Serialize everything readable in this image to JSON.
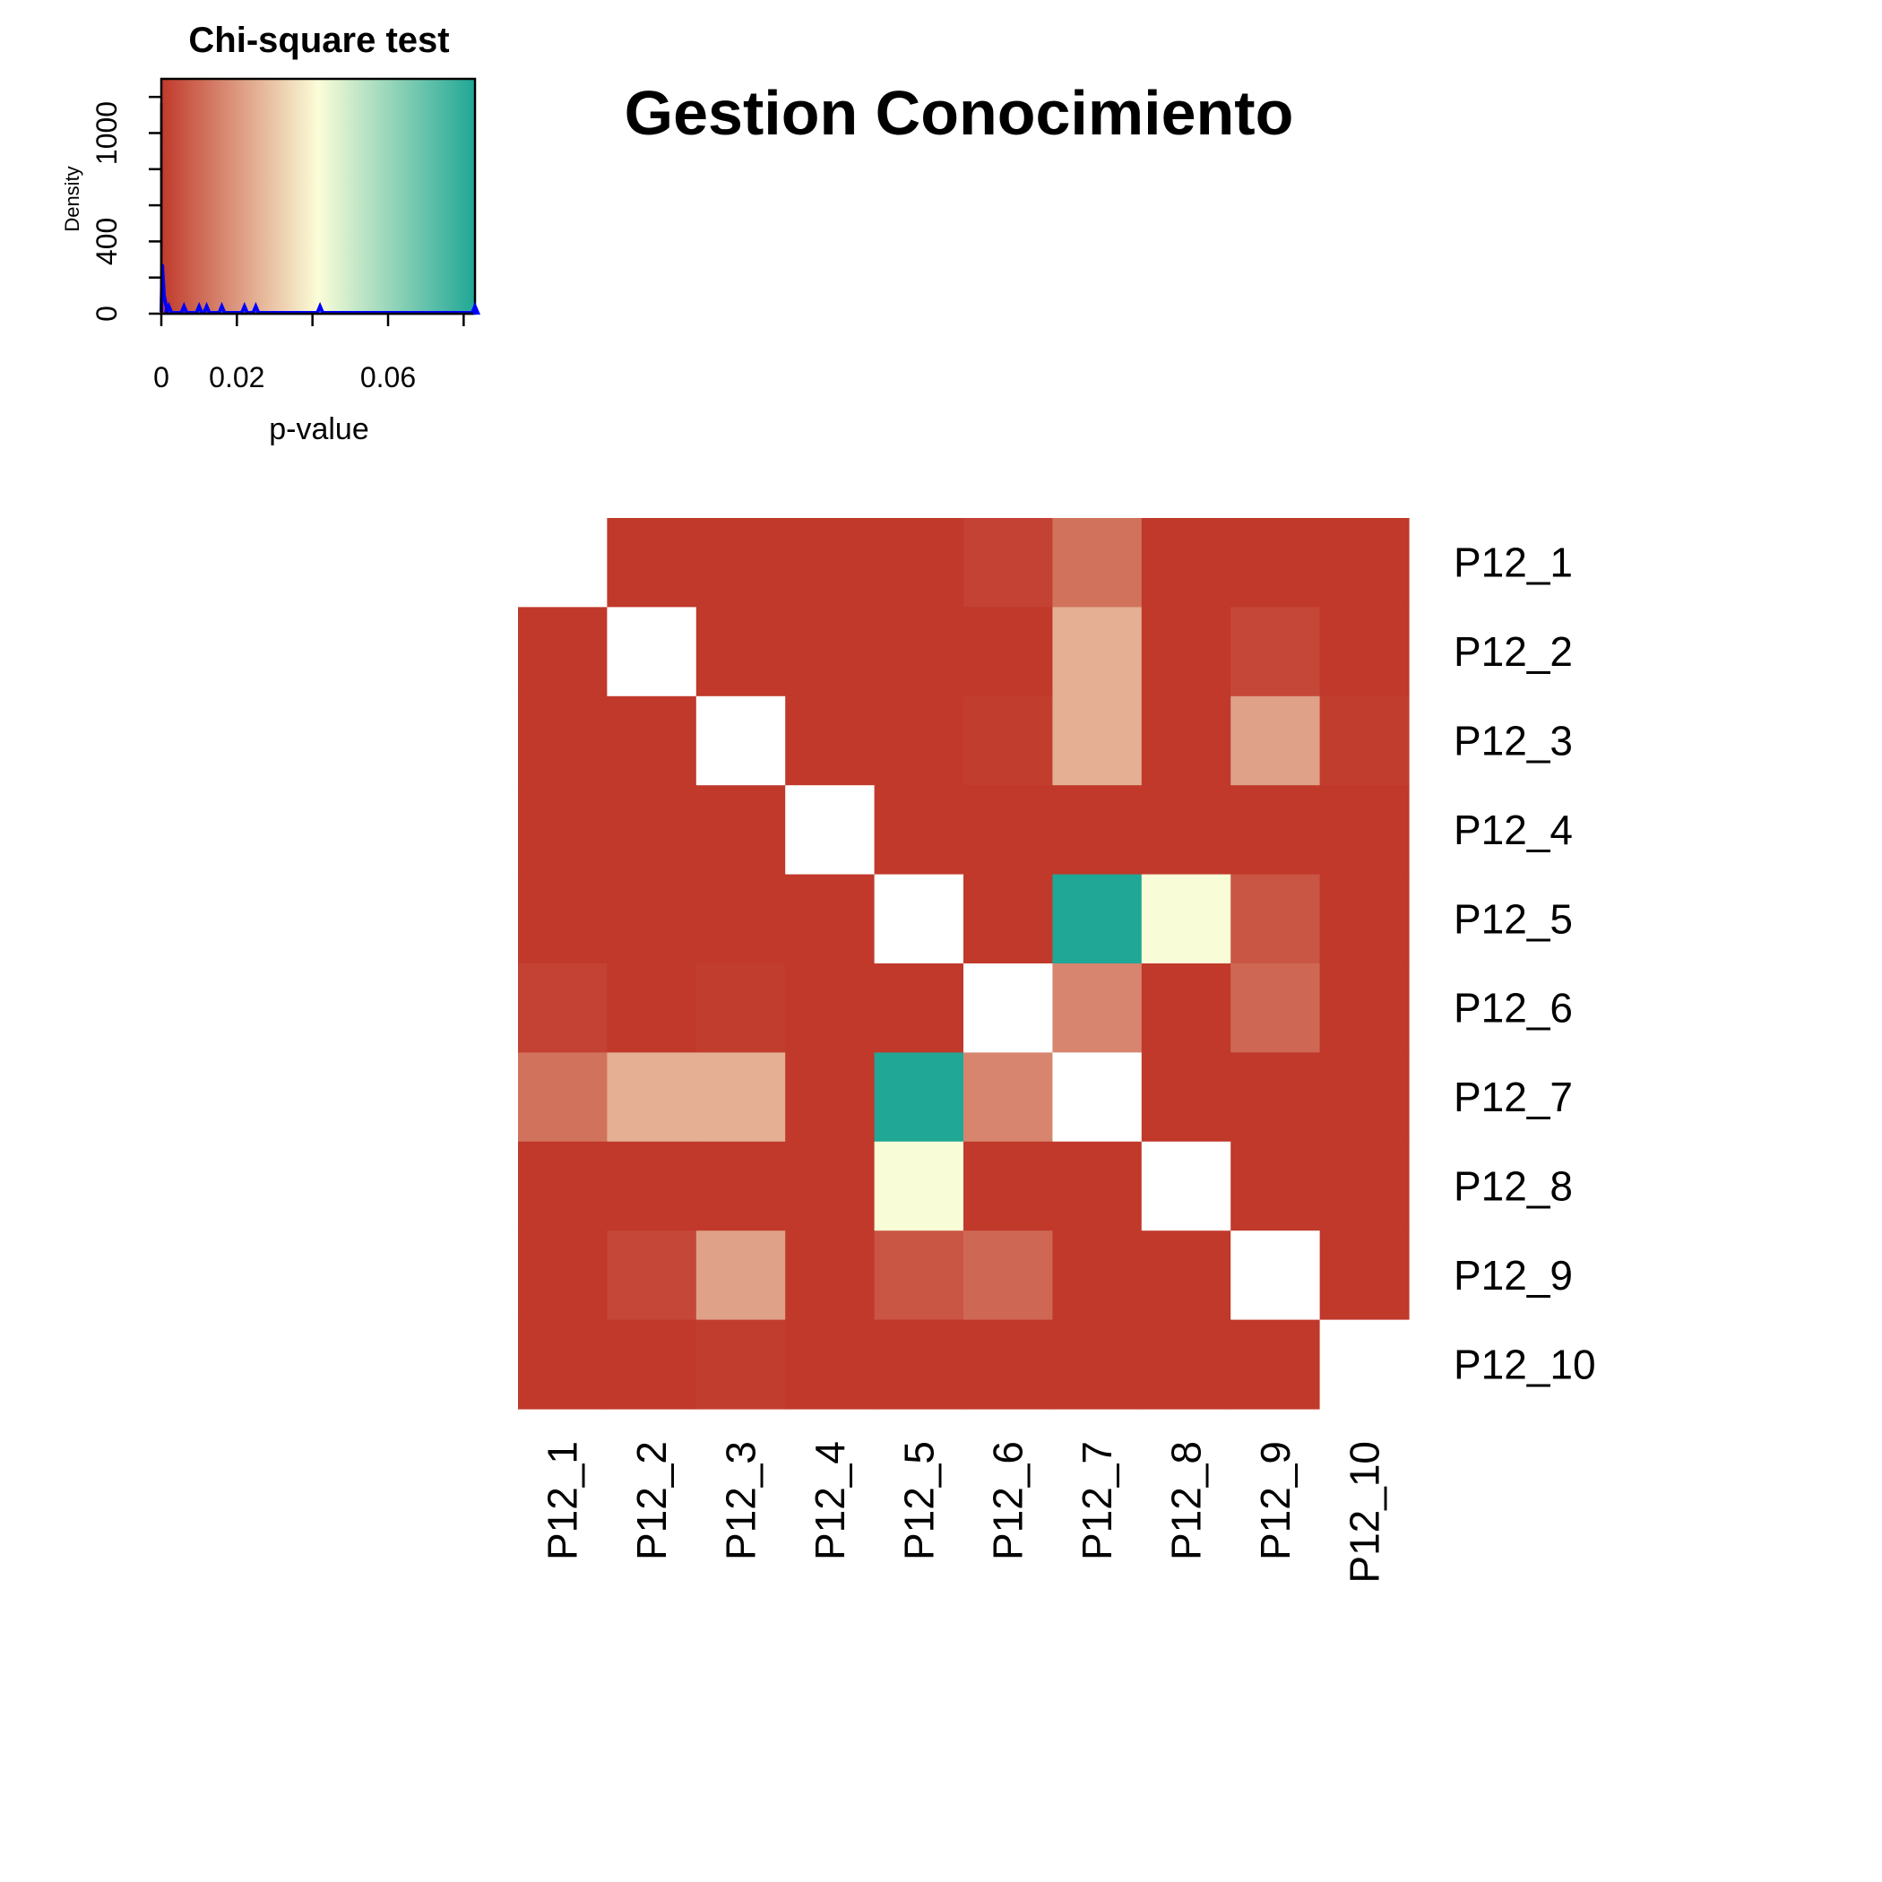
{
  "chart_data": {
    "type": "heatmap",
    "title": "Gestion Conocimiento",
    "row_labels": [
      "P12_1",
      "P12_2",
      "P12_3",
      "P12_4",
      "P12_5",
      "P12_6",
      "P12_7",
      "P12_8",
      "P12_9",
      "P12_10"
    ],
    "col_labels": [
      "P12_1",
      "P12_2",
      "P12_3",
      "P12_4",
      "P12_5",
      "P12_6",
      "P12_7",
      "P12_8",
      "P12_9",
      "P12_10"
    ],
    "values": [
      [
        null,
        0,
        0,
        0,
        0,
        0.002,
        0.012,
        0,
        0,
        0
      ],
      [
        0,
        null,
        0,
        0,
        0,
        0,
        0.025,
        0,
        0.003,
        0
      ],
      [
        0,
        0,
        null,
        0,
        0,
        0.001,
        0.025,
        0,
        0.022,
        0.001
      ],
      [
        0,
        0,
        0,
        null,
        0,
        0,
        0,
        0,
        0,
        0
      ],
      [
        0,
        0,
        0,
        0,
        null,
        0,
        0.083,
        0.042,
        0.006,
        0
      ],
      [
        0.002,
        0,
        0.001,
        0,
        0,
        null,
        0.016,
        0,
        0.01,
        0
      ],
      [
        0.012,
        0.025,
        0.025,
        0,
        0.083,
        0.016,
        null,
        0,
        0,
        0
      ],
      [
        0,
        0,
        0,
        0,
        0.042,
        0,
        0,
        null,
        0,
        0
      ],
      [
        0,
        0.003,
        0.022,
        0,
        0.006,
        0.01,
        0,
        0,
        null,
        0
      ],
      [
        0,
        0,
        0.001,
        0,
        0,
        0,
        0,
        0,
        0,
        null
      ]
    ],
    "color_scale": {
      "min": 0,
      "max": 0.083,
      "colors": [
        "#c0392b",
        "#fbfdd8",
        "#20a796"
      ]
    },
    "legend": {
      "title": "Chi-square test",
      "xlabel": "p-value",
      "ylabel": "Density",
      "x_ticks": [
        "0",
        "0.02",
        "0.06"
      ],
      "y_ticks": [
        "0",
        "400",
        "1000"
      ],
      "placement": "top-left",
      "density_color": "#0000ff"
    },
    "diagonal_color": "#ffffff"
  }
}
